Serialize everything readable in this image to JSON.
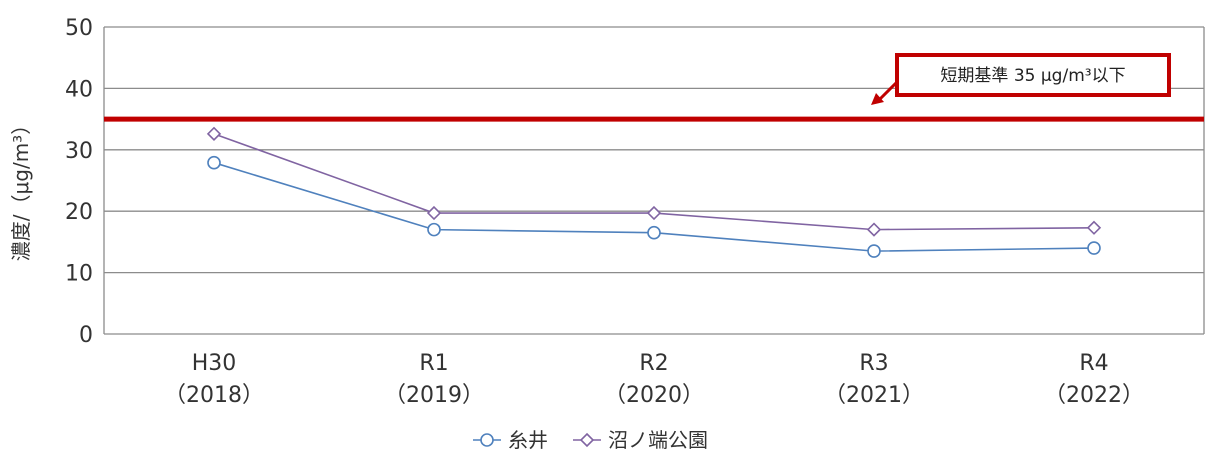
{
  "chart_data": {
    "type": "line",
    "title": "",
    "ylabel": "濃度/（μg/m³）",
    "xlabel": "",
    "ylim": [
      0,
      50
    ],
    "yticks": [
      0,
      10,
      20,
      30,
      40,
      50
    ],
    "categories": [
      "H30\n（2018）",
      "R1\n（2019）",
      "R2\n（2020）",
      "R3\n（2021）",
      "R4\n（2022）"
    ],
    "category_lines": [
      [
        "H30",
        "（2018）"
      ],
      [
        "R1",
        "（2019）"
      ],
      [
        "R2",
        "（2020）"
      ],
      [
        "R3",
        "（2021）"
      ],
      [
        "R4",
        "（2022）"
      ]
    ],
    "series": [
      {
        "name": "糸井",
        "values": [
          27.9,
          17.0,
          16.5,
          13.5,
          14.0
        ],
        "color": "#4f81bd",
        "marker": "circle"
      },
      {
        "name": "沼ノ端公園",
        "values": [
          32.6,
          19.7,
          19.7,
          17.0,
          17.3
        ],
        "color": "#8064a2",
        "marker": "diamond"
      }
    ],
    "reference_line": {
      "value": 35,
      "color": "#c00000"
    },
    "annotation": {
      "text": "短期基準 35 μg/m³以下",
      "border_color": "#c00000"
    },
    "grid": true,
    "legend_position": "bottom"
  }
}
